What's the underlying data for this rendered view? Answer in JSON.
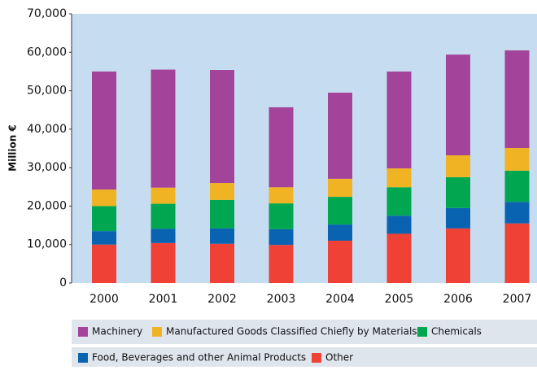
{
  "chart_data": {
    "type": "stacked_bar",
    "y_label": "Million €",
    "categories": [
      "2000",
      "2001",
      "2002",
      "2003",
      "2004",
      "2005",
      "2006",
      "2007"
    ],
    "series": [
      {
        "name": "Other",
        "color": "#ef4136",
        "values": [
          10000,
          10400,
          10200,
          9900,
          11000,
          12800,
          14200,
          15500
        ]
      },
      {
        "name": "Food, Beverages and other Animal Products",
        "color": "#0a63b0",
        "values": [
          3500,
          3700,
          4000,
          4100,
          4200,
          4700,
          5300,
          5600
        ]
      },
      {
        "name": "Chemicals",
        "color": "#00a650",
        "values": [
          6500,
          6500,
          7400,
          6700,
          7200,
          7400,
          8000,
          8100
        ]
      },
      {
        "name": "Manufactured Goods Classified Chiefly by Materials",
        "color": "#f0b323",
        "values": [
          4300,
          4200,
          4400,
          4200,
          4700,
          4900,
          5700,
          5900
        ]
      },
      {
        "name": "Machinery",
        "color": "#a3449a",
        "values": [
          30700,
          30700,
          29400,
          20800,
          22400,
          25200,
          26200,
          25400
        ]
      }
    ],
    "ylim": [
      0,
      70000
    ],
    "yticks": [
      0,
      {
        "value": 10000,
        "label": "10,000"
      },
      {
        "value": 20000,
        "label": "20,000"
      },
      {
        "value": 30000,
        "label": "30,000"
      },
      {
        "value": 40000,
        "label": "40,000"
      },
      {
        "value": 50000,
        "label": "50,000"
      },
      {
        "value": 60000,
        "label": "60,000"
      },
      {
        "value": 70000,
        "label": "70,000"
      }
    ]
  }
}
